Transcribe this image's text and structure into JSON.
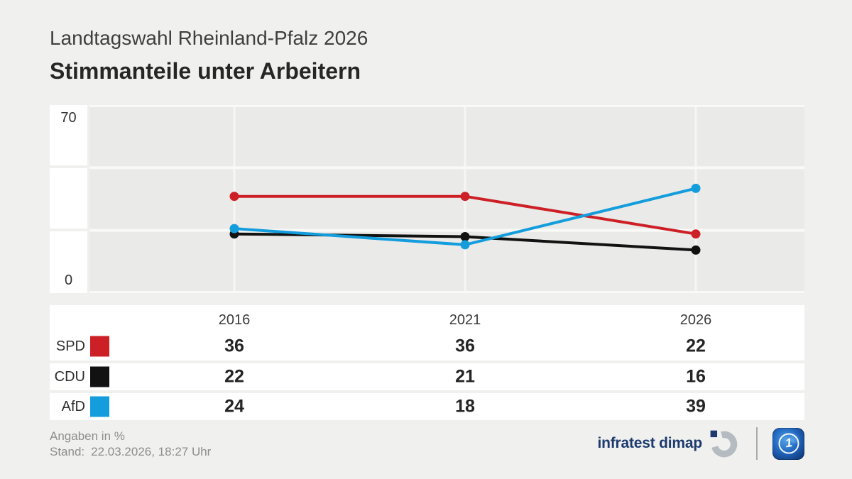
{
  "header": {
    "subtitle": "Landtagswahl Rheinland-Pfalz 2026",
    "title": "Stimmanteile unter Arbeitern"
  },
  "chart_data": {
    "type": "line",
    "title": "Stimmanteile unter Arbeitern",
    "categories": [
      "2016",
      "2021",
      "2026"
    ],
    "series": [
      {
        "name": "SPD",
        "color": "#cc2026",
        "values": [
          36,
          36,
          22
        ]
      },
      {
        "name": "CDU",
        "color": "#121212",
        "values": [
          22,
          21,
          16
        ]
      },
      {
        "name": "AfD",
        "color": "#149ddd",
        "values": [
          24,
          18,
          39
        ]
      }
    ],
    "ylim": [
      0,
      70
    ],
    "unit": "%",
    "grid": "white gridlines: horizontal thirds of 0-70 range, vertical at each category",
    "legend_position": "table-below-chart",
    "y_axis_labels": {
      "top": 70,
      "bottom": 0
    }
  },
  "footer": {
    "note": "Angaben in %",
    "stand_label": "Stand:",
    "stand_value": "22.03.2026, 18:27 Uhr",
    "source": "infratest dimap"
  },
  "colors": {
    "background": "#f0f0ee",
    "plot_background": "#eaeae8",
    "gridline": "#f9f9f7",
    "infratest_blue": "#1c3a6e",
    "logo_gray": "#b4bbc1"
  }
}
